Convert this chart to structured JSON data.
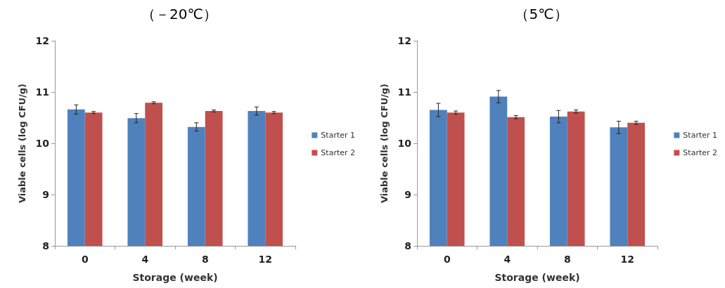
{
  "chart_data": [
    {
      "type": "bar",
      "title": "（－20℃）",
      "xlabel": "Storage (week)",
      "ylabel": "Viable cells (log CFU/g)",
      "categories": [
        "0",
        "4",
        "8",
        "12"
      ],
      "series": [
        {
          "name": "Starter 1",
          "color": "#4f81bd",
          "values": [
            10.66,
            10.49,
            10.32,
            10.63
          ],
          "errors": [
            0.09,
            0.09,
            0.08,
            0.08
          ]
        },
        {
          "name": "Starter 2",
          "color": "#c0504d",
          "values": [
            10.6,
            10.79,
            10.63,
            10.6
          ],
          "errors": [
            0.02,
            0.02,
            0.02,
            0.02
          ]
        }
      ],
      "ylim": [
        8,
        12
      ],
      "yticks": [
        8,
        9,
        10,
        11,
        12
      ],
      "grid": false,
      "legend": "right"
    },
    {
      "type": "bar",
      "title": "（5℃）",
      "xlabel": "Storage (week)",
      "ylabel": "Viable cells (log CFU/g)",
      "categories": [
        "0",
        "4",
        "8",
        "12"
      ],
      "series": [
        {
          "name": "Starter 1",
          "color": "#4f81bd",
          "values": [
            10.65,
            10.91,
            10.52,
            10.31
          ],
          "errors": [
            0.13,
            0.12,
            0.12,
            0.12
          ]
        },
        {
          "name": "Starter 2",
          "color": "#c0504d",
          "values": [
            10.6,
            10.51,
            10.62,
            10.4
          ],
          "errors": [
            0.03,
            0.03,
            0.03,
            0.03
          ]
        }
      ],
      "ylim": [
        8,
        12
      ],
      "yticks": [
        8,
        9,
        10,
        11,
        12
      ],
      "grid": false,
      "legend": "right"
    }
  ]
}
